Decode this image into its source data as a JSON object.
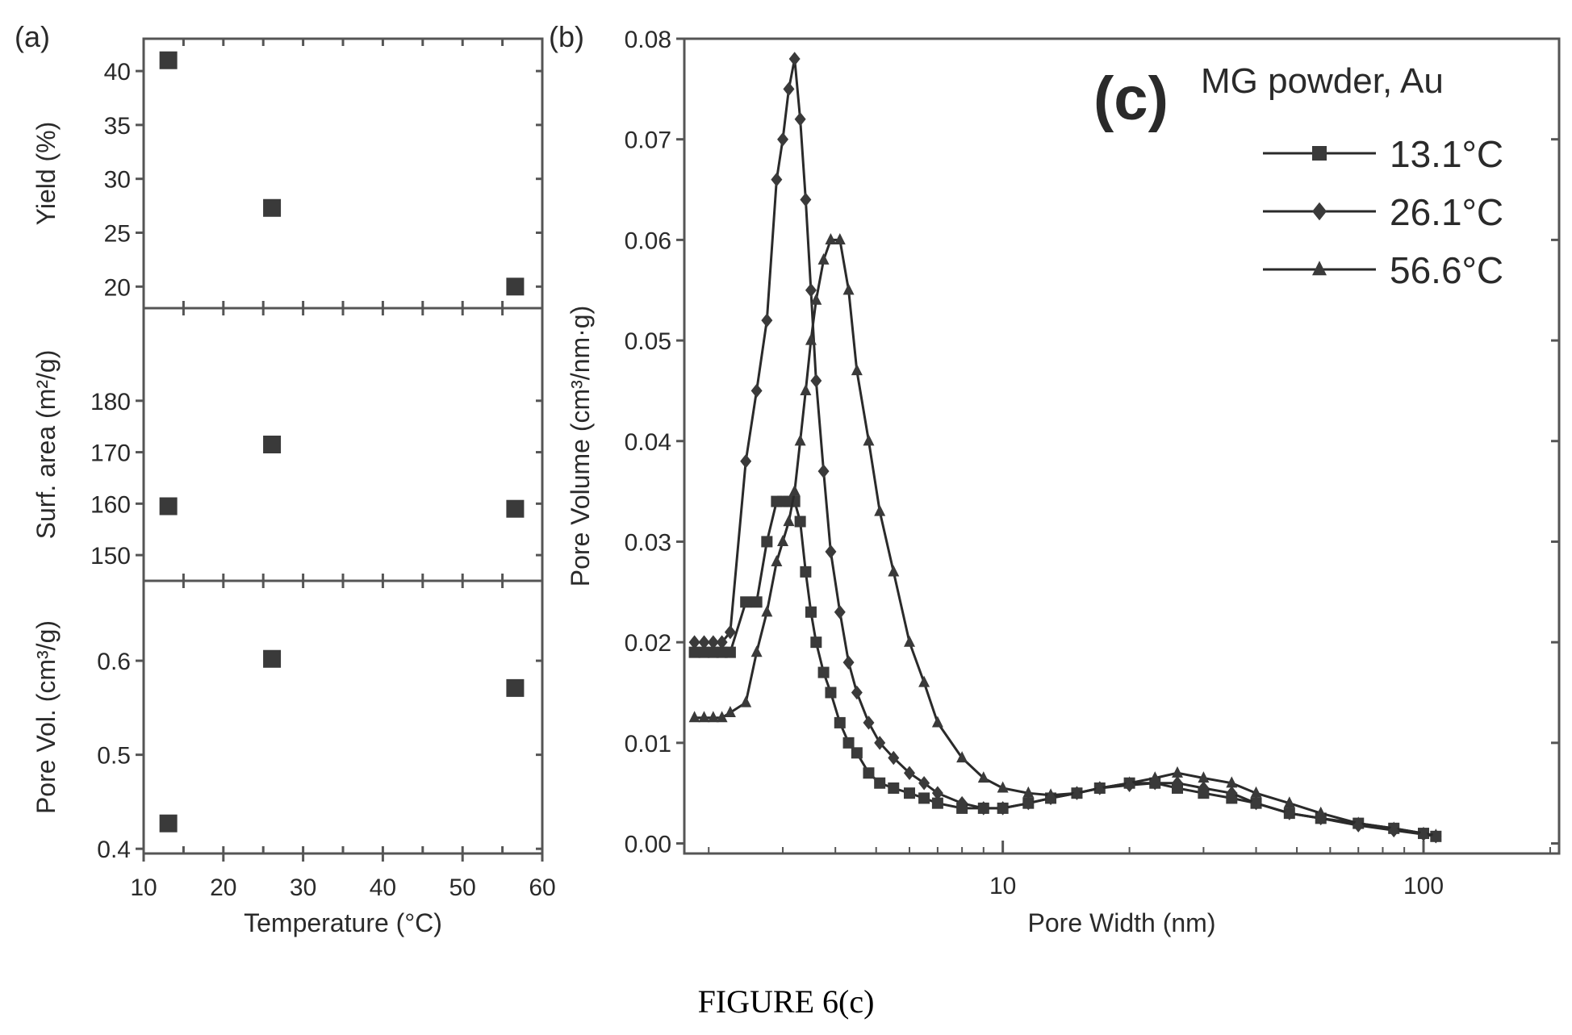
{
  "figure_caption": "FIGURE 6(c)",
  "panel_a_label": "(a)",
  "panel_b_label": "(b)",
  "colors": {
    "ink": "#2a2a2a",
    "axis": "#555555",
    "marker": "#3a3a3a"
  },
  "chart_data": [
    {
      "type": "scatter",
      "panel": "(a)",
      "xlabel": "Temperature (°C)",
      "xlim": [
        10,
        60
      ],
      "xticks": [
        10,
        20,
        30,
        40,
        50,
        60
      ],
      "subplots": [
        {
          "ylabel": "Yield (%)",
          "ylim": [
            18,
            43
          ],
          "yticks": [
            20,
            25,
            30,
            35,
            40
          ],
          "points": [
            {
              "x": 13.1,
              "y": 41
            },
            {
              "x": 26.1,
              "y": 27.3
            },
            {
              "x": 56.6,
              "y": 20
            }
          ]
        },
        {
          "ylabel": "Surf. area (m²/g)",
          "ylim": [
            145,
            198
          ],
          "yticks": [
            150,
            160,
            170,
            180
          ],
          "points": [
            {
              "x": 13.1,
              "y": 159.5
            },
            {
              "x": 26.1,
              "y": 171.5
            },
            {
              "x": 56.6,
              "y": 159
            }
          ]
        },
        {
          "ylabel": "Pore Vol. (cm³/g)",
          "ylim": [
            0.395,
            0.685
          ],
          "yticks": [
            0.4,
            0.5,
            0.6
          ],
          "points": [
            {
              "x": 13.1,
              "y": 0.427
            },
            {
              "x": 26.1,
              "y": 0.602
            },
            {
              "x": 56.6,
              "y": 0.571
            }
          ]
        }
      ]
    },
    {
      "type": "line",
      "panel": "(b)",
      "annotation_big": "(c)",
      "annotation_text": "MG powder, Au",
      "xlabel": "Pore Width (nm)",
      "ylabel": "Pore Volume (cm³/nm·g)",
      "x_scale": "log",
      "xlim": [
        1.75,
        210
      ],
      "ylim": [
        -0.001,
        0.08
      ],
      "yticks": [
        0.0,
        0.01,
        0.02,
        0.03,
        0.04,
        0.05,
        0.06,
        0.07,
        0.08
      ],
      "ytick_labels": [
        "0.00",
        "0.01",
        "0.02",
        "0.03",
        "0.04",
        "0.05",
        "0.06",
        "0.07",
        "0.08"
      ],
      "xticks": [
        10,
        100
      ],
      "xtick_labels": [
        "10",
        "100"
      ],
      "legend_position": "top-right",
      "series": [
        {
          "name": "13.1°C",
          "marker": "square",
          "x": [
            1.85,
            1.95,
            2.05,
            2.15,
            2.25,
            2.45,
            2.6,
            2.75,
            2.9,
            3.0,
            3.1,
            3.2,
            3.3,
            3.4,
            3.5,
            3.6,
            3.75,
            3.9,
            4.1,
            4.3,
            4.5,
            4.8,
            5.1,
            5.5,
            6.0,
            6.5,
            7.0,
            8.0,
            9.0,
            10.0,
            11.5,
            13.0,
            15.0,
            17.0,
            20.0,
            23.0,
            26.0,
            30.0,
            35.0,
            40.0,
            48.0,
            57.0,
            70.0,
            85.0,
            100.0,
            107.0
          ],
          "y": [
            0.019,
            0.019,
            0.019,
            0.019,
            0.019,
            0.024,
            0.024,
            0.03,
            0.034,
            0.034,
            0.034,
            0.034,
            0.032,
            0.027,
            0.023,
            0.02,
            0.017,
            0.015,
            0.012,
            0.01,
            0.009,
            0.007,
            0.006,
            0.0055,
            0.005,
            0.0045,
            0.004,
            0.0035,
            0.0035,
            0.0035,
            0.004,
            0.0045,
            0.005,
            0.0055,
            0.006,
            0.006,
            0.0055,
            0.005,
            0.0045,
            0.004,
            0.003,
            0.0025,
            0.002,
            0.0015,
            0.001,
            0.0007
          ]
        },
        {
          "name": "26.1°C",
          "marker": "diamond",
          "x": [
            1.85,
            1.95,
            2.05,
            2.15,
            2.25,
            2.45,
            2.6,
            2.75,
            2.9,
            3.0,
            3.1,
            3.2,
            3.3,
            3.4,
            3.5,
            3.6,
            3.75,
            3.9,
            4.1,
            4.3,
            4.5,
            4.8,
            5.1,
            5.5,
            6.0,
            6.5,
            7.0,
            8.0,
            9.0,
            10.0,
            11.5,
            13.0,
            15.0,
            17.0,
            20.0,
            23.0,
            26.0,
            30.0,
            35.0,
            40.0,
            48.0,
            57.0,
            70.0,
            85.0,
            100.0,
            107.0
          ],
          "y": [
            0.02,
            0.02,
            0.02,
            0.02,
            0.021,
            0.038,
            0.045,
            0.052,
            0.066,
            0.07,
            0.075,
            0.078,
            0.072,
            0.064,
            0.055,
            0.046,
            0.037,
            0.029,
            0.023,
            0.018,
            0.015,
            0.012,
            0.01,
            0.0085,
            0.007,
            0.006,
            0.005,
            0.004,
            0.0035,
            0.0035,
            0.004,
            0.0045,
            0.005,
            0.0055,
            0.0058,
            0.006,
            0.006,
            0.0055,
            0.005,
            0.004,
            0.003,
            0.0025,
            0.0018,
            0.0013,
            0.0009,
            0.0007
          ]
        },
        {
          "name": "56.6°C",
          "marker": "triangle",
          "x": [
            1.85,
            1.95,
            2.05,
            2.15,
            2.25,
            2.45,
            2.6,
            2.75,
            2.9,
            3.0,
            3.1,
            3.2,
            3.3,
            3.4,
            3.5,
            3.6,
            3.75,
            3.9,
            4.1,
            4.3,
            4.5,
            4.8,
            5.1,
            5.5,
            6.0,
            6.5,
            7.0,
            8.0,
            9.0,
            10.0,
            11.5,
            13.0,
            15.0,
            17.0,
            20.0,
            23.0,
            26.0,
            30.0,
            35.0,
            40.0,
            48.0,
            57.0,
            70.0,
            85.0,
            100.0,
            107.0
          ],
          "y": [
            0.0125,
            0.0125,
            0.0125,
            0.0125,
            0.013,
            0.014,
            0.019,
            0.023,
            0.028,
            0.03,
            0.032,
            0.035,
            0.04,
            0.045,
            0.05,
            0.054,
            0.058,
            0.06,
            0.06,
            0.055,
            0.047,
            0.04,
            0.033,
            0.027,
            0.02,
            0.016,
            0.012,
            0.0085,
            0.0065,
            0.0055,
            0.005,
            0.0048,
            0.005,
            0.0055,
            0.006,
            0.0065,
            0.007,
            0.0065,
            0.006,
            0.005,
            0.004,
            0.003,
            0.002,
            0.0015,
            0.001,
            0.0008
          ]
        }
      ]
    }
  ]
}
